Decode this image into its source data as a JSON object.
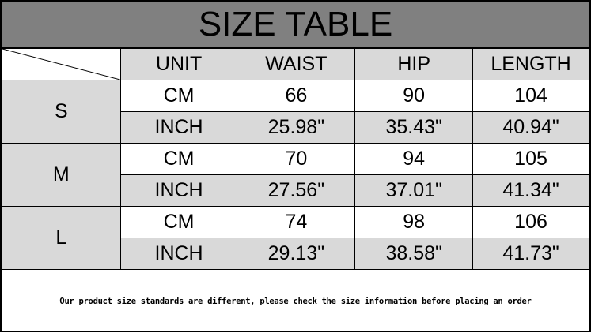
{
  "title": "SIZE TABLE",
  "headers": [
    "UNIT",
    "WAIST",
    "HIP",
    "LENGTH"
  ],
  "sizes": [
    {
      "size": "S",
      "rows": [
        {
          "unit": "CM",
          "waist": "66",
          "hip": "90",
          "length": "104"
        },
        {
          "unit": "INCH",
          "waist": "25.98\"",
          "hip": "35.43\"",
          "length": "40.94\""
        }
      ]
    },
    {
      "size": "M",
      "rows": [
        {
          "unit": "CM",
          "waist": "70",
          "hip": "94",
          "length": "105"
        },
        {
          "unit": "INCH",
          "waist": "27.56\"",
          "hip": "37.01\"",
          "length": "41.34\""
        }
      ]
    },
    {
      "size": "L",
      "rows": [
        {
          "unit": "CM",
          "waist": "74",
          "hip": "98",
          "length": "106"
        },
        {
          "unit": "INCH",
          "waist": "29.13\"",
          "hip": "38.58\"",
          "length": "41.73\""
        }
      ]
    }
  ],
  "footer": "Our product size standards are different, please check the size information before placing an order",
  "colors": {
    "title_bg": "#808080",
    "cell_gray": "#d9d9d9"
  }
}
